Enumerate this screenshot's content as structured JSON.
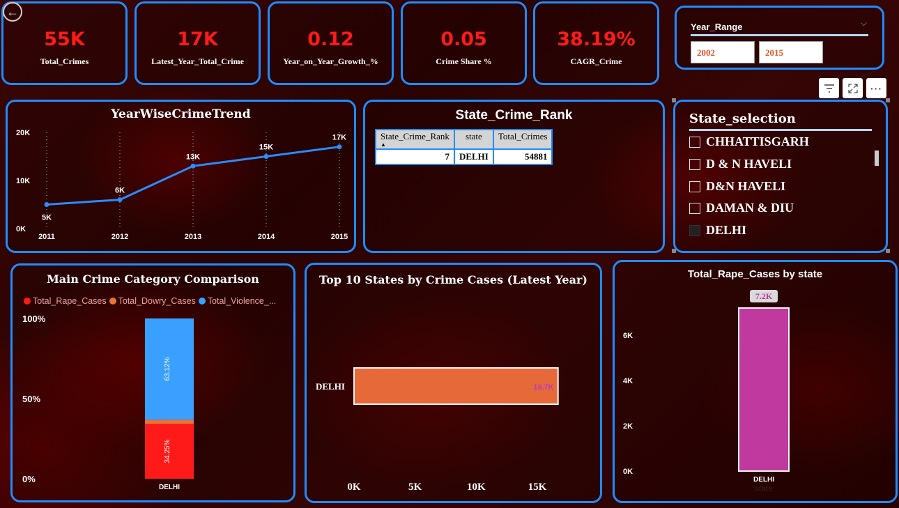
{
  "kpis": [
    {
      "value": "55K",
      "label": "Total_Crimes"
    },
    {
      "value": "17K",
      "label": "Latest_Year_Total_Crime"
    },
    {
      "value": "0.12",
      "label": "Year_on_Year_Growth_%"
    },
    {
      "value": "0.05",
      "label": "Crime Share %"
    },
    {
      "value": "38.19%",
      "label": "CAGR_Crime"
    }
  ],
  "year_range": {
    "title": "Year_Range",
    "from": "2002",
    "to": "2015"
  },
  "toolbar": {
    "filter_icon": "filter-icon",
    "focus_icon": "focus-mode-icon",
    "more_icon": "more-options-icon"
  },
  "trend": {
    "title": "YearWiseCrimeTrend",
    "y_ticks": [
      "20K",
      "10K",
      "0K"
    ],
    "points": [
      {
        "year": "2011",
        "value": 5000,
        "label": "5K"
      },
      {
        "year": "2012",
        "value": 6000,
        "label": "6K"
      },
      {
        "year": "2013",
        "value": 13000,
        "label": "13K"
      },
      {
        "year": "2014",
        "value": 15000,
        "label": "15K"
      },
      {
        "year": "2015",
        "value": 17000,
        "label": "17K"
      }
    ]
  },
  "rank_table": {
    "title": "State_Crime_Rank",
    "headers": [
      "State_Crime_Rank",
      "state",
      "Total_Crimes"
    ],
    "rows": [
      [
        "7",
        "DELHI",
        "54881"
      ]
    ]
  },
  "state_selection": {
    "title": "State_selection",
    "items": [
      {
        "label": "CHHATTISGARH",
        "checked": false
      },
      {
        "label": "D & N HAVELI",
        "checked": false
      },
      {
        "label": "D&N HAVELI",
        "checked": false
      },
      {
        "label": "DAMAN & DIU",
        "checked": false
      },
      {
        "label": "DELHI",
        "checked": true
      }
    ]
  },
  "category": {
    "title": "Main Crime Category Comparison",
    "legend": [
      "Total_Rape_Cases",
      "Total_Dowry_Cases",
      "Total_Violence_..."
    ],
    "colors": [
      "#ff1a1a",
      "#e6733a",
      "#3aa0ff"
    ],
    "y_ticks": [
      "100%",
      "50%",
      "0%"
    ],
    "state": "DELHI",
    "rape_label": "34.25%",
    "violence_label": "63.12%"
  },
  "top10": {
    "title": "Top 10 States by Crime Cases (Latest Year)",
    "state": "DELHI",
    "bar_label": "16.7K",
    "x_ticks": [
      "0K",
      "5K",
      "10K",
      "15K"
    ]
  },
  "rape_by_state": {
    "title": "Total_Rape_Cases by state",
    "bar_label": "7.2K",
    "y_ticks": [
      "6K",
      "4K",
      "2K",
      "0K"
    ],
    "state": "DELHI",
    "x_title": "state"
  },
  "chart_data": [
    {
      "type": "line",
      "title": "YearWiseCrimeTrend",
      "x": [
        "2011",
        "2012",
        "2013",
        "2014",
        "2015"
      ],
      "series": [
        {
          "values": [
            5000,
            6000,
            13000,
            15000,
            17000
          ]
        }
      ],
      "ylim": [
        0,
        20000
      ]
    },
    {
      "type": "bar",
      "title": "Main Crime Category Comparison",
      "categories": [
        "DELHI"
      ],
      "series": [
        {
          "name": "Total_Rape_Cases",
          "values": [
            34.25
          ]
        },
        {
          "name": "Total_Dowry_Cases",
          "values": [
            2.63
          ]
        },
        {
          "name": "Total_Violence_...",
          "values": [
            63.12
          ]
        }
      ],
      "ylim": [
        0,
        100
      ]
    },
    {
      "type": "bar",
      "title": "Top 10 States by Crime Cases (Latest Year)",
      "categories": [
        "DELHI"
      ],
      "values": [
        16700
      ],
      "xlim": [
        0,
        17000
      ]
    },
    {
      "type": "bar",
      "title": "Total_Rape_Cases by state",
      "categories": [
        "DELHI"
      ],
      "values": [
        7200
      ],
      "xlabel": "state",
      "ylim": [
        0,
        7500
      ]
    }
  ]
}
